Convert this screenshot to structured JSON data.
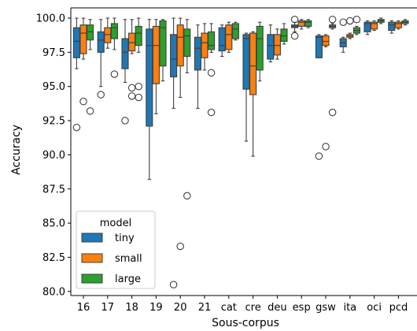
{
  "chart_data": {
    "type": "boxplot",
    "xlabel": "Sous-corpus",
    "ylabel": "Accuracy",
    "ylim": [
      79.7,
      100.75
    ],
    "yticks": [
      "80.0",
      "82.5",
      "85.0",
      "87.5",
      "90.0",
      "92.5",
      "95.0",
      "97.5",
      "100.0"
    ],
    "categories": [
      "16",
      "17",
      "18",
      "19",
      "20",
      "21",
      "cat",
      "cre",
      "deu",
      "esp",
      "gsw",
      "ita",
      "oci",
      "pcd"
    ],
    "legend": {
      "title": "model",
      "position": "lower-left"
    },
    "series": [
      {
        "name": "tiny",
        "color": "#1f77b4",
        "boxes": [
          {
            "whislo": 96.3,
            "q1": 97.1,
            "med": 98.3,
            "q3": 99.3,
            "whishi": 100.0,
            "fliers": [
              92.0
            ]
          },
          {
            "whislo": 95.0,
            "q1": 97.5,
            "med": 98.4,
            "q3": 99.0,
            "whishi": 99.9,
            "fliers": [
              94.4
            ]
          },
          {
            "whislo": 95.3,
            "q1": 96.3,
            "med": 97.5,
            "q3": 98.5,
            "whishi": 99.9,
            "fliers": [
              92.5
            ]
          },
          {
            "whislo": 88.2,
            "q1": 92.1,
            "med": 98.0,
            "q3": 99.2,
            "whishi": 99.9,
            "fliers": []
          },
          {
            "whislo": 93.4,
            "q1": 95.7,
            "med": 97.0,
            "q3": 98.8,
            "whishi": 100.0,
            "fliers": [
              80.5
            ]
          },
          {
            "whislo": 93.4,
            "q1": 96.2,
            "med": 97.8,
            "q3": 98.6,
            "whishi": 99.5,
            "fliers": []
          },
          {
            "whislo": 97.2,
            "q1": 97.6,
            "med": 98.0,
            "q3": 99.3,
            "whishi": 99.5,
            "fliers": []
          },
          {
            "whislo": 91.0,
            "q1": 94.8,
            "med": 98.5,
            "q3": 98.8,
            "whishi": 98.9,
            "fliers": []
          },
          {
            "whislo": 96.8,
            "q1": 97.0,
            "med": 98.0,
            "q3": 98.8,
            "whishi": 99.5,
            "fliers": []
          },
          {
            "whislo": 99.0,
            "q1": 99.3,
            "med": 99.4,
            "q3": 99.5,
            "whishi": 99.7,
            "fliers": [
              99.9,
              98.7
            ]
          },
          {
            "whislo": 97.1,
            "q1": 97.1,
            "med": 98.6,
            "q3": 98.7,
            "whishi": 98.8,
            "fliers": [
              89.9
            ]
          },
          {
            "whislo": 97.5,
            "q1": 97.9,
            "med": 98.2,
            "q3": 98.5,
            "whishi": 98.6,
            "fliers": [
              99.7
            ]
          },
          {
            "whislo": 98.8,
            "q1": 99.0,
            "med": 99.6,
            "q3": 99.7,
            "whishi": 99.8,
            "fliers": []
          },
          {
            "whislo": 98.9,
            "q1": 99.1,
            "med": 99.5,
            "q3": 99.7,
            "whishi": 99.8,
            "fliers": []
          }
        ]
      },
      {
        "name": "small",
        "color": "#ff7f0e",
        "boxes": [
          {
            "whislo": 97.0,
            "q1": 97.4,
            "med": 98.9,
            "q3": 99.5,
            "whishi": 100.0,
            "fliers": [
              93.9
            ]
          },
          {
            "whislo": 97.8,
            "q1": 98.2,
            "med": 98.8,
            "q3": 99.3,
            "whishi": 100.0,
            "fliers": []
          },
          {
            "whislo": 97.4,
            "q1": 97.6,
            "med": 98.2,
            "q3": 98.9,
            "whishi": 99.9,
            "fliers": [
              94.9,
              94.3
            ]
          },
          {
            "whislo": 93.0,
            "q1": 95.2,
            "med": 98.0,
            "q3": 99.4,
            "whishi": 99.9,
            "fliers": []
          },
          {
            "whislo": 94.2,
            "q1": 96.5,
            "med": 98.6,
            "q3": 99.5,
            "whishi": 100.0,
            "fliers": [
              83.3
            ]
          },
          {
            "whislo": 96.2,
            "q1": 97.1,
            "med": 98.2,
            "q3": 98.9,
            "whishi": 99.6,
            "fliers": []
          },
          {
            "whislo": 97.5,
            "q1": 97.7,
            "med": 98.8,
            "q3": 99.5,
            "whishi": 99.7,
            "fliers": []
          },
          {
            "whislo": 89.9,
            "q1": 94.4,
            "med": 96.5,
            "q3": 98.9,
            "whishi": 99.0,
            "fliers": []
          },
          {
            "whislo": 97.0,
            "q1": 97.3,
            "med": 98.0,
            "q3": 98.8,
            "whishi": 99.2,
            "fliers": []
          },
          {
            "whislo": 99.2,
            "q1": 99.4,
            "med": 99.7,
            "q3": 99.8,
            "whishi": 99.9,
            "fliers": []
          },
          {
            "whislo": 97.9,
            "q1": 98.0,
            "med": 98.3,
            "q3": 98.7,
            "whishi": 98.8,
            "fliers": [
              90.6
            ]
          },
          {
            "whislo": 98.5,
            "q1": 98.6,
            "med": 98.7,
            "q3": 98.8,
            "whishi": 98.9,
            "fliers": [
              99.8
            ]
          },
          {
            "whislo": 99.1,
            "q1": 99.2,
            "med": 99.6,
            "q3": 99.7,
            "whishi": 99.8,
            "fliers": []
          },
          {
            "whislo": 99.2,
            "q1": 99.3,
            "med": 99.6,
            "q3": 99.7,
            "whishi": 99.8,
            "fliers": []
          }
        ]
      },
      {
        "name": "large",
        "color": "#2ca02c",
        "boxes": [
          {
            "whislo": 97.7,
            "q1": 98.4,
            "med": 99.0,
            "q3": 99.5,
            "whishi": 99.9,
            "fliers": [
              93.2
            ]
          },
          {
            "whislo": 97.7,
            "q1": 98.5,
            "med": 99.3,
            "q3": 99.6,
            "whishi": 100.0,
            "fliers": [
              95.9
            ]
          },
          {
            "whislo": 97.5,
            "q1": 98.0,
            "med": 98.9,
            "q3": 99.4,
            "whishi": 100.0,
            "fliers": [
              95.0,
              94.2
            ]
          },
          {
            "whislo": 95.4,
            "q1": 96.5,
            "med": 99.3,
            "q3": 99.8,
            "whishi": 99.9,
            "fliers": []
          },
          {
            "whislo": 96.0,
            "q1": 97.2,
            "med": 98.7,
            "q3": 99.2,
            "whishi": 99.9,
            "fliers": [
              87.0
            ]
          },
          {
            "whislo": 97.5,
            "q1": 97.7,
            "med": 98.0,
            "q3": 99.0,
            "whishi": 99.6,
            "fliers": [
              96.0,
              93.1
            ]
          },
          {
            "whislo": 98.4,
            "q1": 98.5,
            "med": 99.2,
            "q3": 99.6,
            "whishi": 99.7,
            "fliers": []
          },
          {
            "whislo": 95.4,
            "q1": 96.2,
            "med": 98.5,
            "q3": 99.4,
            "whishi": 99.7,
            "fliers": []
          },
          {
            "whislo": 98.1,
            "q1": 98.3,
            "med": 98.7,
            "q3": 99.2,
            "whishi": 99.6,
            "fliers": []
          },
          {
            "whislo": 99.3,
            "q1": 99.4,
            "med": 99.7,
            "q3": 99.8,
            "whishi": 99.9,
            "fliers": []
          },
          {
            "whislo": 99.2,
            "q1": 99.3,
            "med": 99.4,
            "q3": 99.5,
            "whishi": 99.6,
            "fliers": [
              99.9,
              93.1
            ]
          },
          {
            "whislo": 98.8,
            "q1": 98.9,
            "med": 99.1,
            "q3": 99.3,
            "whishi": 99.4,
            "fliers": [
              99.9
            ]
          },
          {
            "whislo": 99.6,
            "q1": 99.7,
            "med": 99.8,
            "q3": 99.9,
            "whishi": 100.0,
            "fliers": []
          },
          {
            "whislo": 99.5,
            "q1": 99.6,
            "med": 99.7,
            "q3": 99.8,
            "whishi": 99.9,
            "fliers": []
          }
        ]
      }
    ]
  }
}
